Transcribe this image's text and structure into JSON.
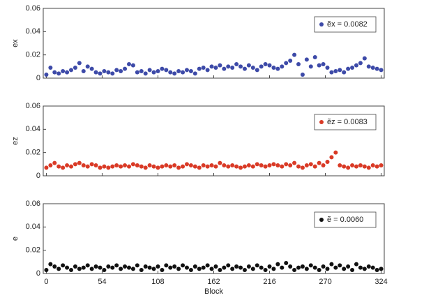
{
  "chart_data": [
    {
      "type": "scatter",
      "ylabel": "ex",
      "legend": "upper right",
      "x": [
        0,
        4,
        8,
        12,
        16,
        20,
        24,
        28,
        32,
        36,
        40,
        44,
        48,
        52,
        56,
        60,
        64,
        68,
        72,
        76,
        80,
        84,
        88,
        92,
        96,
        100,
        104,
        108,
        112,
        116,
        120,
        124,
        128,
        132,
        136,
        140,
        144,
        148,
        152,
        156,
        160,
        164,
        168,
        172,
        176,
        180,
        184,
        188,
        192,
        196,
        200,
        204,
        208,
        212,
        216,
        220,
        224,
        228,
        232,
        236,
        240,
        244,
        248,
        252,
        256,
        260,
        264,
        268,
        272,
        276,
        280,
        284,
        288,
        292,
        296,
        300,
        304,
        308,
        312,
        316,
        320,
        324
      ],
      "series": [
        {
          "name": "ẽx = 0.0082",
          "color": "#3d4aa8",
          "values": [
            0.003,
            0.009,
            0.005,
            0.004,
            0.006,
            0.005,
            0.007,
            0.009,
            0.013,
            0.006,
            0.01,
            0.008,
            0.005,
            0.004,
            0.006,
            0.005,
            0.004,
            0.007,
            0.006,
            0.008,
            0.012,
            0.011,
            0.005,
            0.006,
            0.004,
            0.007,
            0.005,
            0.006,
            0.008,
            0.007,
            0.005,
            0.004,
            0.006,
            0.005,
            0.007,
            0.006,
            0.004,
            0.008,
            0.009,
            0.007,
            0.01,
            0.009,
            0.011,
            0.008,
            0.01,
            0.009,
            0.012,
            0.01,
            0.008,
            0.011,
            0.009,
            0.007,
            0.01,
            0.012,
            0.011,
            0.009,
            0.008,
            0.01,
            0.013,
            0.015,
            0.02,
            0.012,
            0.003,
            0.016,
            0.01,
            0.018,
            0.011,
            0.012,
            0.009,
            0.005,
            0.006,
            0.007,
            0.005,
            0.008,
            0.009,
            0.011,
            0.013,
            0.017,
            0.01,
            0.009,
            0.008,
            0.007
          ]
        }
      ],
      "xlim": [
        -3,
        327
      ],
      "ylim": [
        0,
        0.06
      ],
      "xticks": [
        0,
        54,
        108,
        162,
        216,
        270,
        324
      ],
      "yticks": [
        0,
        0.02,
        0.04,
        0.06
      ]
    },
    {
      "type": "scatter",
      "ylabel": "ez",
      "legend": "upper right",
      "x": [
        0,
        4,
        8,
        12,
        16,
        20,
        24,
        28,
        32,
        36,
        40,
        44,
        48,
        52,
        56,
        60,
        64,
        68,
        72,
        76,
        80,
        84,
        88,
        92,
        96,
        100,
        104,
        108,
        112,
        116,
        120,
        124,
        128,
        132,
        136,
        140,
        144,
        148,
        152,
        156,
        160,
        164,
        168,
        172,
        176,
        180,
        184,
        188,
        192,
        196,
        200,
        204,
        208,
        212,
        216,
        220,
        224,
        228,
        232,
        236,
        240,
        244,
        248,
        252,
        256,
        260,
        264,
        268,
        272,
        276,
        280,
        284,
        288,
        292,
        296,
        300,
        304,
        308,
        312,
        316,
        320,
        324
      ],
      "series": [
        {
          "name": "ẽz = 0.0083",
          "color": "#d93a26",
          "values": [
            0.007,
            0.009,
            0.011,
            0.008,
            0.007,
            0.009,
            0.008,
            0.01,
            0.011,
            0.009,
            0.008,
            0.01,
            0.009,
            0.007,
            0.008,
            0.007,
            0.008,
            0.009,
            0.008,
            0.009,
            0.008,
            0.01,
            0.009,
            0.008,
            0.007,
            0.009,
            0.008,
            0.007,
            0.008,
            0.009,
            0.008,
            0.009,
            0.007,
            0.008,
            0.01,
            0.009,
            0.008,
            0.007,
            0.009,
            0.008,
            0.009,
            0.008,
            0.011,
            0.009,
            0.008,
            0.009,
            0.008,
            0.007,
            0.008,
            0.009,
            0.008,
            0.01,
            0.009,
            0.008,
            0.009,
            0.01,
            0.009,
            0.008,
            0.01,
            0.009,
            0.011,
            0.008,
            0.007,
            0.009,
            0.01,
            0.008,
            0.011,
            0.009,
            0.012,
            0.016,
            0.02,
            0.009,
            0.008,
            0.007,
            0.009,
            0.008,
            0.009,
            0.008,
            0.007,
            0.009,
            0.008,
            0.009
          ]
        }
      ],
      "xlim": [
        -3,
        327
      ],
      "ylim": [
        0,
        0.06
      ],
      "xticks": [
        0,
        54,
        108,
        162,
        216,
        270,
        324
      ],
      "yticks": [
        0,
        0.02,
        0.04,
        0.06
      ]
    },
    {
      "type": "scatter",
      "ylabel": "e",
      "xlabel": "Block",
      "legend": "upper right",
      "x": [
        0,
        4,
        8,
        12,
        16,
        20,
        24,
        28,
        32,
        36,
        40,
        44,
        48,
        52,
        56,
        60,
        64,
        68,
        72,
        76,
        80,
        84,
        88,
        92,
        96,
        100,
        104,
        108,
        112,
        116,
        120,
        124,
        128,
        132,
        136,
        140,
        144,
        148,
        152,
        156,
        160,
        164,
        168,
        172,
        176,
        180,
        184,
        188,
        192,
        196,
        200,
        204,
        208,
        212,
        216,
        220,
        224,
        228,
        232,
        236,
        240,
        244,
        248,
        252,
        256,
        260,
        264,
        268,
        272,
        276,
        280,
        284,
        288,
        292,
        296,
        300,
        304,
        308,
        312,
        316,
        320,
        324
      ],
      "series": [
        {
          "name": "ẽ = 0.0060",
          "color": "#111111",
          "values": [
            0.003,
            0.008,
            0.006,
            0.004,
            0.007,
            0.005,
            0.003,
            0.006,
            0.004,
            0.005,
            0.007,
            0.004,
            0.006,
            0.005,
            0.003,
            0.006,
            0.005,
            0.007,
            0.004,
            0.006,
            0.005,
            0.004,
            0.007,
            0.003,
            0.006,
            0.005,
            0.004,
            0.006,
            0.003,
            0.007,
            0.005,
            0.006,
            0.004,
            0.007,
            0.005,
            0.003,
            0.006,
            0.004,
            0.005,
            0.007,
            0.004,
            0.006,
            0.003,
            0.005,
            0.007,
            0.004,
            0.006,
            0.005,
            0.003,
            0.006,
            0.004,
            0.007,
            0.005,
            0.003,
            0.006,
            0.004,
            0.008,
            0.005,
            0.009,
            0.006,
            0.003,
            0.005,
            0.006,
            0.004,
            0.007,
            0.005,
            0.003,
            0.006,
            0.004,
            0.008,
            0.005,
            0.007,
            0.004,
            0.006,
            0.003,
            0.008,
            0.005,
            0.004,
            0.006,
            0.005,
            0.003,
            0.004
          ]
        }
      ],
      "xlim": [
        -3,
        327
      ],
      "ylim": [
        0,
        0.06
      ],
      "xticks": [
        0,
        54,
        108,
        162,
        216,
        270,
        324
      ],
      "yticks": [
        0,
        0.02,
        0.04,
        0.06
      ]
    }
  ]
}
